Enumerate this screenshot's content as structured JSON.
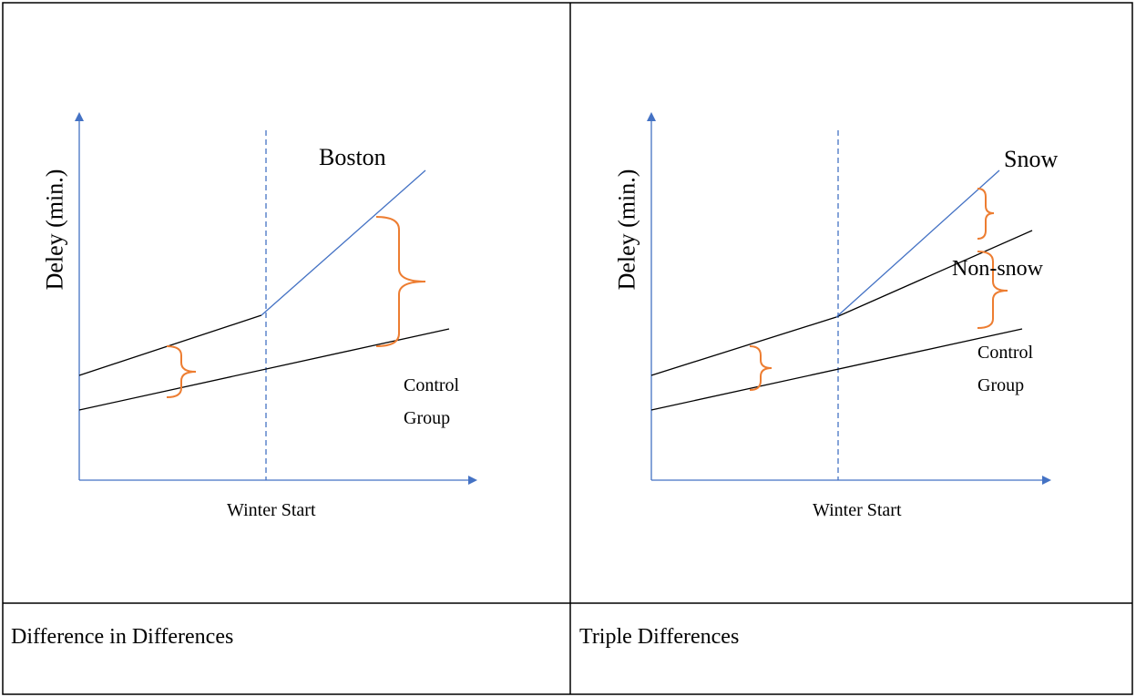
{
  "panels": [
    {
      "y_label": "Deley (min.)",
      "x_label": "Winter Start",
      "labels": [
        "Boston",
        "Control Group"
      ],
      "caption": "Difference in Differences"
    },
    {
      "y_label": "Deley (min.)",
      "x_label": "Winter Start",
      "labels": [
        "Snow",
        "Non-snow",
        "Control Group"
      ],
      "caption": "Triple Differences"
    }
  ]
}
